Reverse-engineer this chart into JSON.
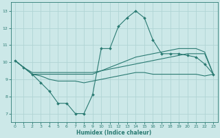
{
  "xlabel": "Humidex (Indice chaleur)",
  "xlim": [
    -0.5,
    23.5
  ],
  "ylim": [
    6.5,
    13.5
  ],
  "xticks": [
    0,
    1,
    2,
    3,
    4,
    5,
    6,
    7,
    8,
    9,
    10,
    11,
    12,
    13,
    14,
    15,
    16,
    17,
    18,
    19,
    20,
    21,
    22,
    23
  ],
  "yticks": [
    7,
    8,
    9,
    10,
    11,
    12,
    13
  ],
  "bg_color": "#cce8e8",
  "grid_color": "#b0d4d4",
  "line_color": "#2a7a72",
  "line1_x": [
    0,
    1,
    2,
    3,
    4,
    5,
    6,
    7,
    8,
    9,
    10,
    11,
    12,
    13,
    14,
    15,
    16,
    17,
    18,
    19,
    20,
    21,
    22,
    23
  ],
  "line1_y": [
    10.1,
    9.7,
    9.3,
    8.8,
    8.3,
    7.6,
    7.6,
    7.0,
    7.0,
    8.1,
    10.8,
    10.8,
    12.1,
    12.6,
    13.0,
    12.6,
    11.3,
    10.5,
    10.5,
    10.5,
    10.4,
    10.3,
    9.9,
    9.3
  ],
  "line2_x": [
    0,
    1,
    2,
    3,
    4,
    5,
    6,
    7,
    8,
    9,
    10,
    11,
    12,
    13,
    14,
    15,
    16,
    17,
    18,
    19,
    20,
    21,
    22,
    23
  ],
  "line2_y": [
    10.1,
    9.7,
    9.4,
    9.4,
    9.4,
    9.4,
    9.4,
    9.4,
    9.4,
    9.4,
    9.5,
    9.6,
    9.7,
    9.8,
    9.9,
    10.0,
    10.1,
    10.2,
    10.3,
    10.4,
    10.5,
    10.5,
    10.5,
    9.3
  ],
  "line3_x": [
    0,
    1,
    2,
    3,
    4,
    5,
    6,
    7,
    8,
    9,
    10,
    11,
    12,
    13,
    14,
    15,
    16,
    17,
    18,
    19,
    20,
    21,
    22,
    23
  ],
  "line3_y": [
    10.1,
    9.7,
    9.3,
    9.3,
    9.3,
    9.3,
    9.3,
    9.3,
    9.3,
    9.3,
    9.5,
    9.7,
    9.9,
    10.1,
    10.3,
    10.4,
    10.5,
    10.6,
    10.7,
    10.8,
    10.8,
    10.8,
    10.6,
    9.3
  ],
  "line4_x": [
    0,
    1,
    2,
    3,
    4,
    5,
    6,
    7,
    8,
    9,
    10,
    11,
    12,
    13,
    14,
    15,
    16,
    17,
    18,
    19,
    20,
    21,
    22,
    23
  ],
  "line4_y": [
    10.1,
    9.7,
    9.3,
    9.2,
    9.0,
    8.9,
    8.9,
    8.9,
    8.8,
    8.9,
    9.0,
    9.1,
    9.2,
    9.3,
    9.4,
    9.4,
    9.3,
    9.3,
    9.3,
    9.3,
    9.3,
    9.3,
    9.2,
    9.3
  ]
}
